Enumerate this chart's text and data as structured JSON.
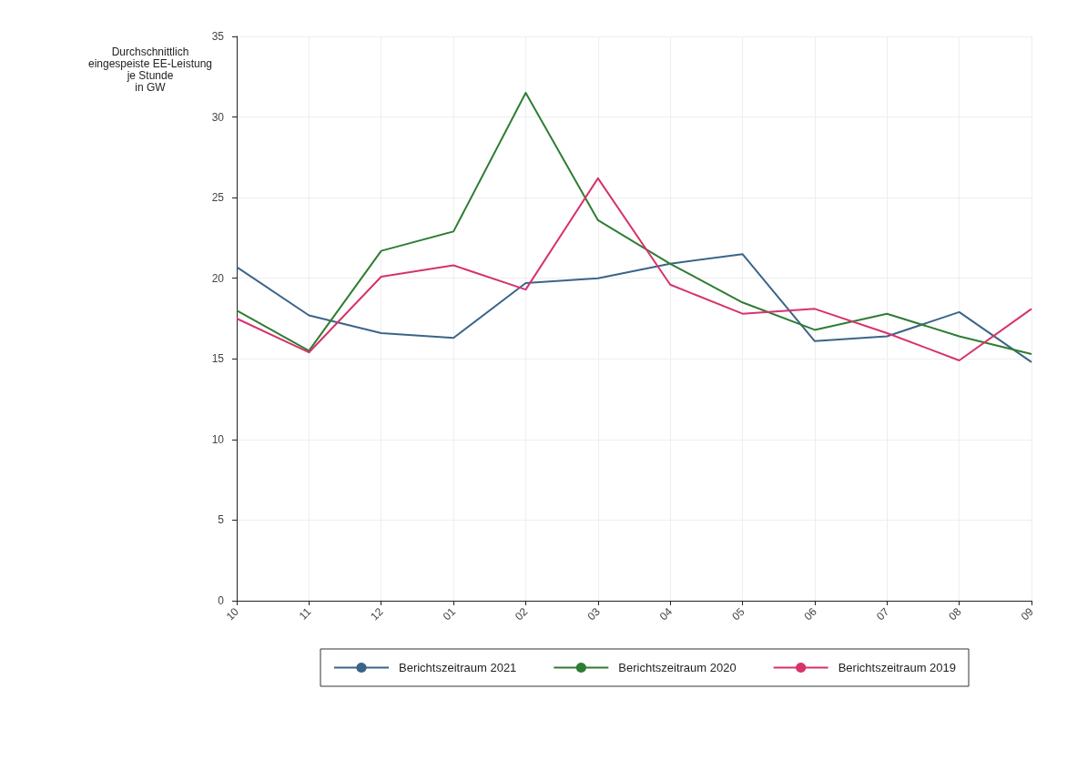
{
  "chart_data": {
    "type": "line",
    "ylabel": "Durchschnittlich\neingespeiste EE-Leistung\nje Stunde\nin GW",
    "categories": [
      "10",
      "11",
      "12",
      "01",
      "02",
      "03",
      "04",
      "05",
      "06",
      "07",
      "08",
      "09"
    ],
    "series": [
      {
        "name": "Berichtszeitraum 2021",
        "color": "#3b6489",
        "values": [
          20.7,
          17.7,
          16.6,
          16.3,
          19.7,
          20.0,
          20.9,
          21.5,
          16.1,
          16.4,
          17.9,
          14.8
        ]
      },
      {
        "name": "Berichtszeitraum 2020",
        "color": "#2e7d32",
        "values": [
          18.0,
          15.5,
          21.7,
          22.9,
          31.5,
          23.6,
          20.9,
          18.5,
          16.8,
          17.8,
          16.4,
          15.3
        ]
      },
      {
        "name": "Berichtszeitraum 2019",
        "color": "#d6336c",
        "values": [
          17.5,
          15.4,
          20.1,
          20.8,
          19.3,
          26.2,
          19.6,
          17.8,
          18.1,
          16.6,
          14.9,
          18.1
        ]
      }
    ],
    "ylim": [
      0,
      35
    ],
    "yticks": [
      0,
      5,
      10,
      15,
      20,
      25,
      30,
      35
    ],
    "grid": true,
    "legend": "bottom",
    "marker": "none",
    "line_style": "solid"
  }
}
